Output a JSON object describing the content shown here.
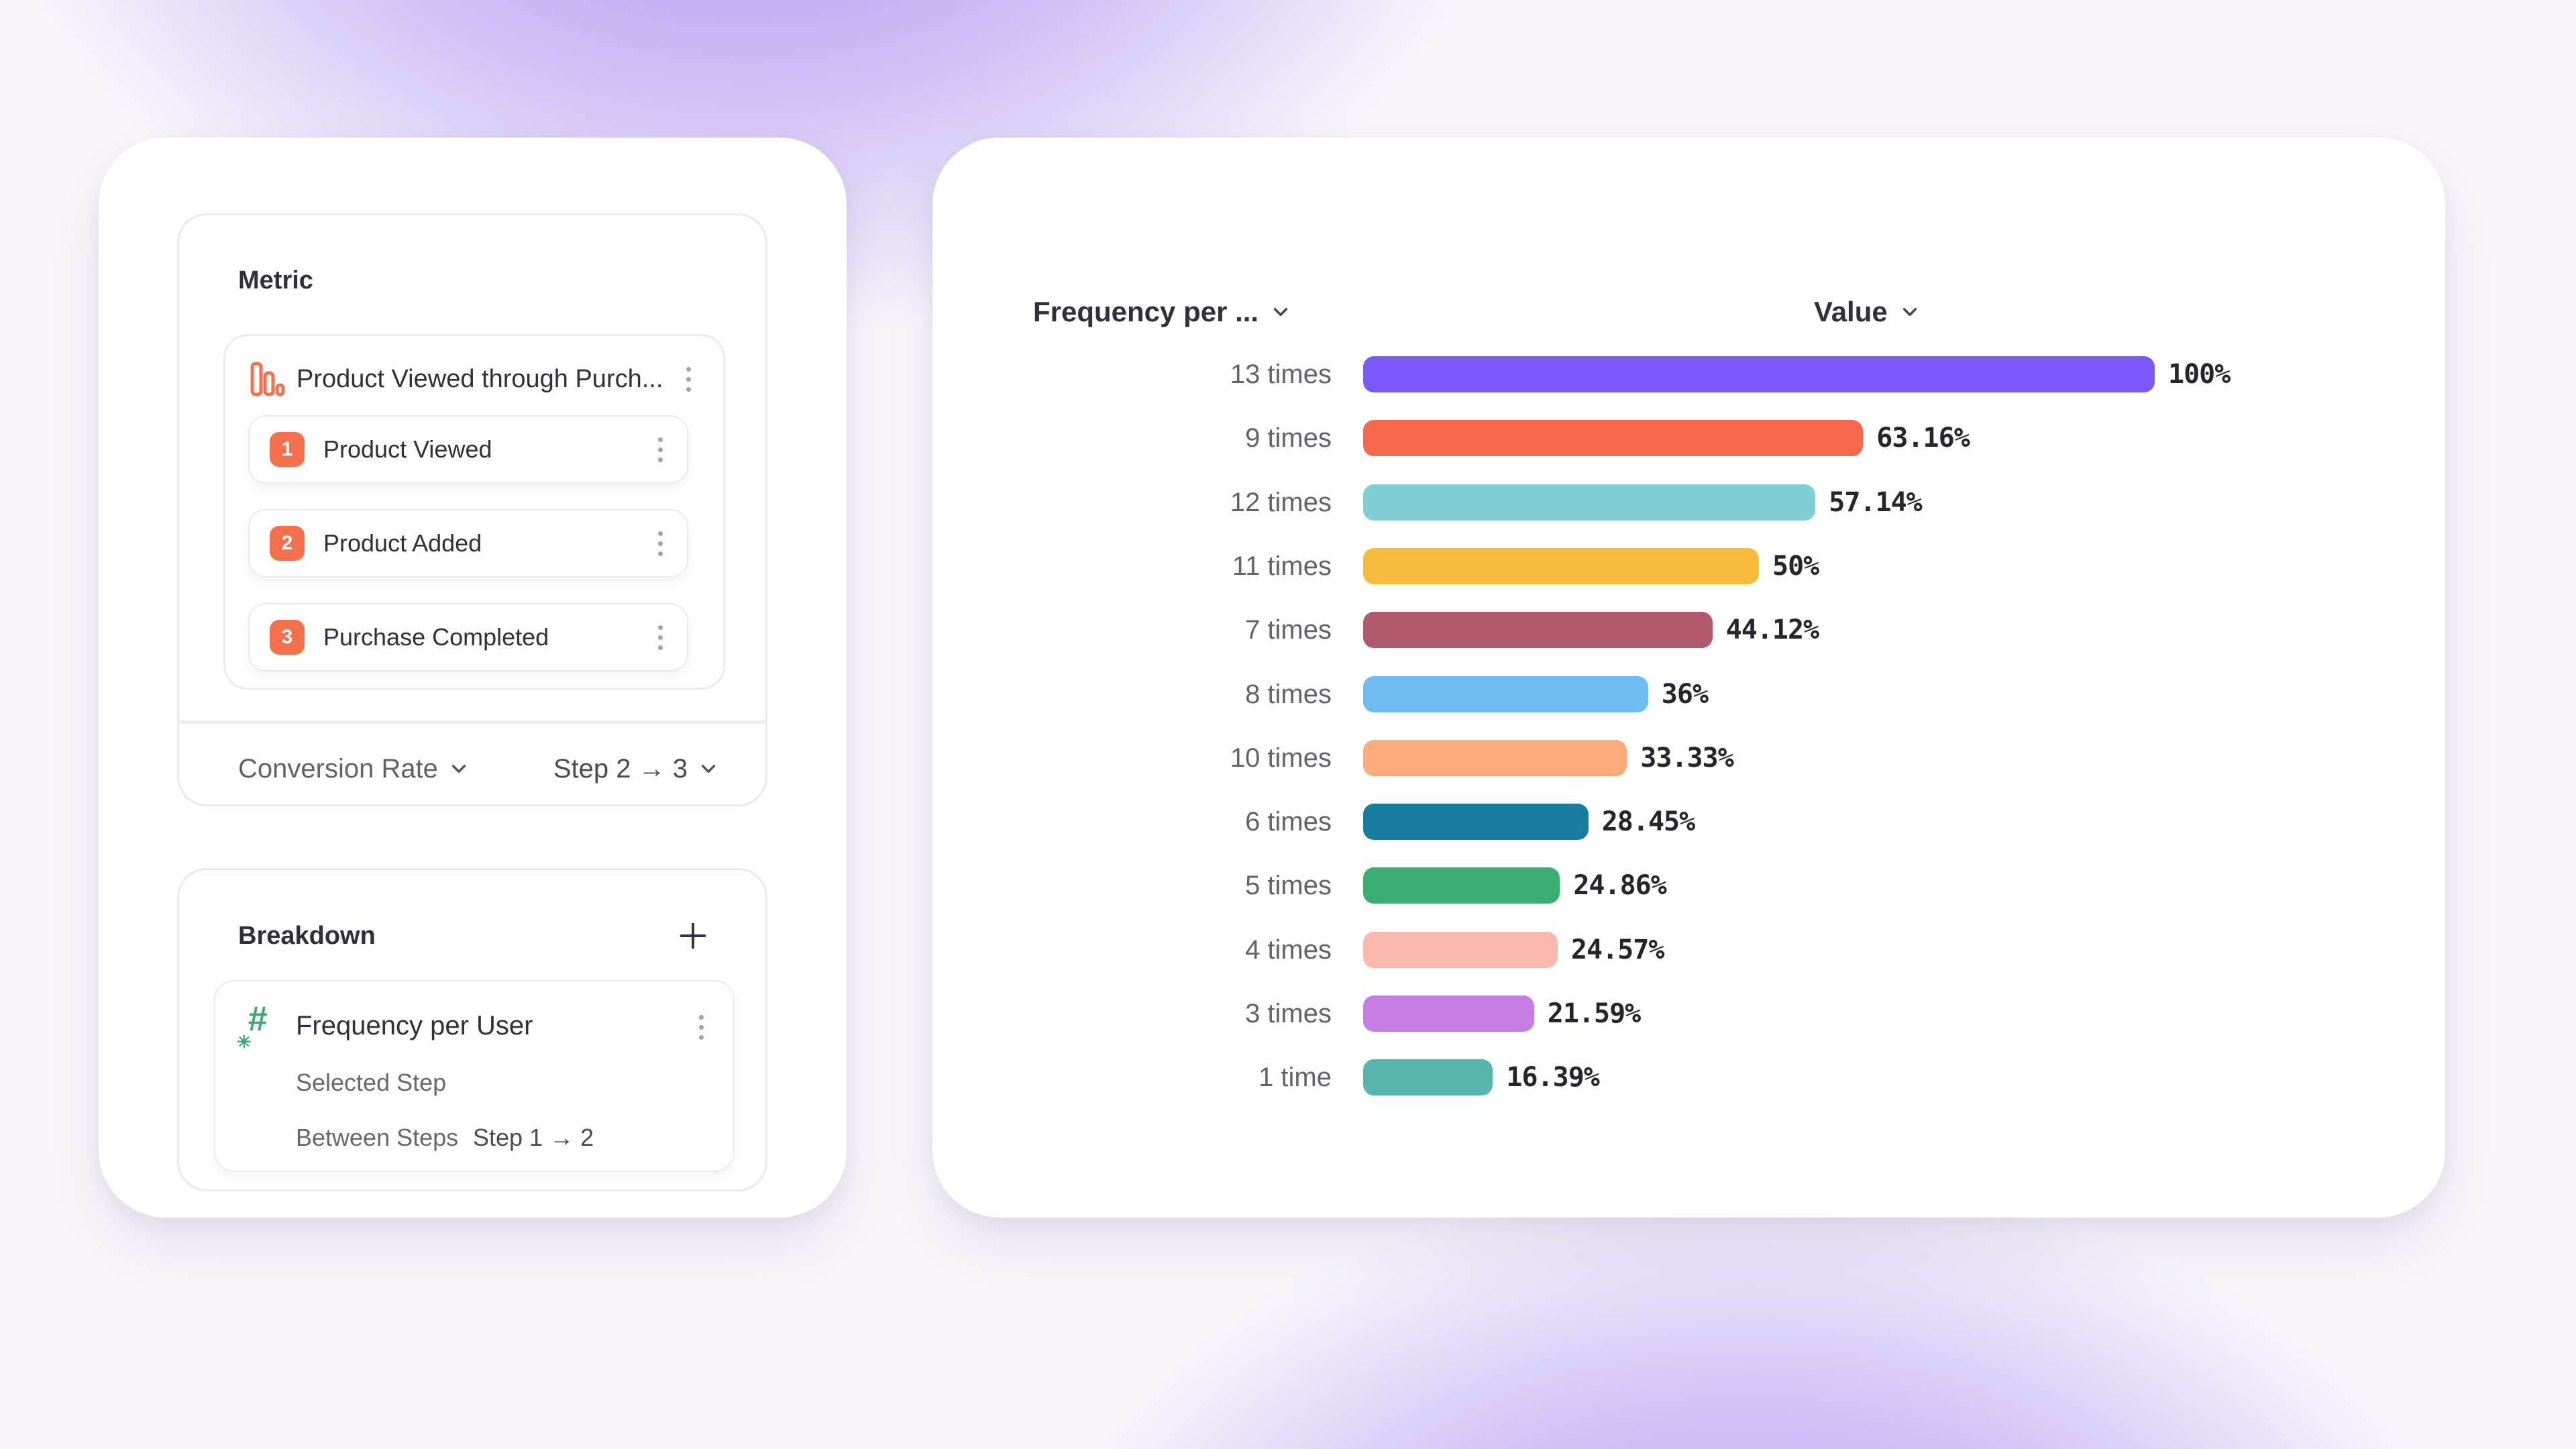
{
  "left_panel": {
    "metric_section": {
      "title": "Metric",
      "funnel": {
        "name": "Product Viewed through Purch...",
        "steps": [
          {
            "number": "1",
            "label": "Product Viewed"
          },
          {
            "number": "2",
            "label": "Product Added"
          },
          {
            "number": "3",
            "label": "Purchase Completed"
          }
        ]
      },
      "footer": {
        "measure": "Conversion Rate",
        "step_range": "Step 2 → 3"
      }
    },
    "breakdown_section": {
      "title": "Breakdown",
      "item": {
        "name": "Frequency per User",
        "property_rows": [
          {
            "label": "Selected Step",
            "value": ""
          },
          {
            "label": "Between Steps",
            "value": "Step 1 → 2"
          }
        ]
      }
    }
  },
  "chart_panel": {
    "category_header": "Frequency per ...",
    "value_header": "Value"
  },
  "chart_data": {
    "type": "bar",
    "orientation": "horizontal",
    "categories": [
      "13 times",
      "9 times",
      "12 times",
      "11 times",
      "7 times",
      "8 times",
      "10 times",
      "6 times",
      "5 times",
      "4 times",
      "3 times",
      "1 time"
    ],
    "values": [
      100,
      63.16,
      57.14,
      50,
      44.12,
      36,
      33.33,
      28.45,
      24.86,
      24.57,
      21.59,
      16.39
    ],
    "value_labels": [
      "100%",
      "63.16%",
      "57.14%",
      "50%",
      "44.12%",
      "36%",
      "33.33%",
      "28.45%",
      "24.86%",
      "24.57%",
      "21.59%",
      "16.39%"
    ],
    "bar_colors": [
      "#7A58FA",
      "#F8684C",
      "#7FCFD4",
      "#F7BB3E",
      "#B25A6D",
      "#6FBCF3",
      "#FBAD79",
      "#177C9F",
      "#3CAE71",
      "#FBB9AD",
      "#C77EE4",
      "#58B7AC"
    ],
    "xlim": [
      0,
      100
    ],
    "grid": false,
    "legend": "none",
    "title": ""
  },
  "colors": {
    "accent_orange": "#F5714D",
    "accent_green": "#3BA974",
    "background_glow": "#A78BF0",
    "text_dark": "#312F3B",
    "text_gray": "#69676F",
    "border": "#ECEAEF"
  }
}
